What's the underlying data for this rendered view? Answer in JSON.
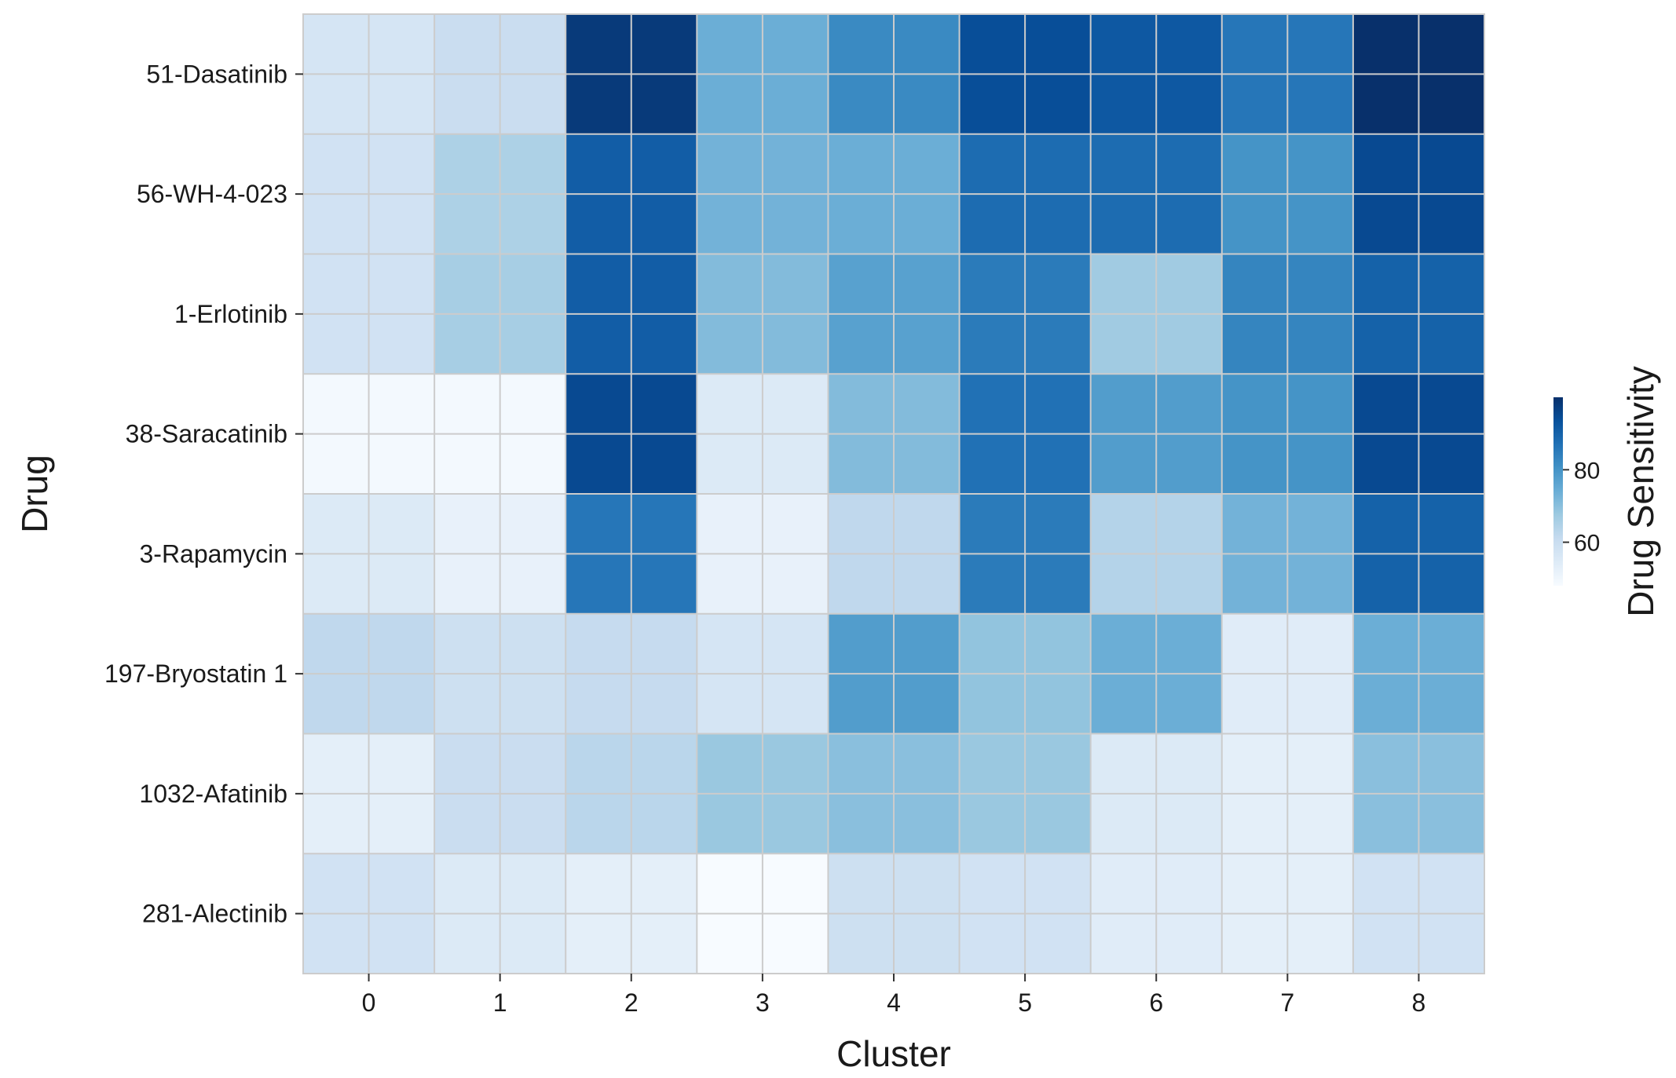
{
  "chart_data": {
    "type": "heatmap",
    "title": "",
    "xlabel": "Cluster",
    "ylabel": "Drug",
    "x_categories": [
      "0",
      "1",
      "2",
      "3",
      "4",
      "5",
      "6",
      "7",
      "8"
    ],
    "y_categories": [
      "51-Dasatinib",
      "56-WH-4-023",
      "1-Erlotinib",
      "38-Saracatinib",
      "3-Rapamycin",
      "197-Bryostatin 1",
      "1032-Afatinib",
      "281-Alectinib"
    ],
    "values": [
      [
        57,
        60,
        98,
        74,
        82,
        94,
        92,
        86,
        100
      ],
      [
        58,
        65,
        91,
        73,
        74,
        88,
        88,
        80,
        95
      ],
      [
        58,
        66,
        91,
        71,
        77,
        85,
        67,
        83,
        90
      ],
      [
        49,
        49,
        95,
        55,
        71,
        87,
        78,
        80,
        95
      ],
      [
        55,
        52,
        86,
        52,
        62,
        85,
        64,
        73,
        90
      ],
      [
        62,
        59,
        61,
        57,
        78,
        69,
        74,
        54,
        74
      ],
      [
        53,
        60,
        63,
        68,
        70,
        68,
        55,
        53,
        70
      ],
      [
        58,
        55,
        53,
        48,
        59,
        58,
        54,
        53,
        58
      ]
    ],
    "colorbar": {
      "label": "Drug Sensitivity",
      "ticks": [
        60,
        80
      ],
      "range": [
        48,
        100
      ],
      "colormap": "Blues"
    },
    "grid": true,
    "colors": {
      "low": "#f7fbff",
      "high": "#08306b",
      "grid_line": "#cccccc"
    }
  }
}
